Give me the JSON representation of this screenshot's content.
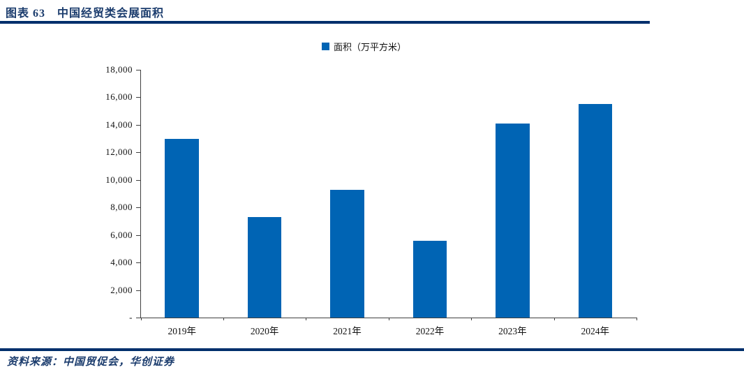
{
  "header": {
    "title": "图表 63　中国经贸类会展面积"
  },
  "legend": {
    "marker": "square-icon",
    "label": "面积（万平方米）"
  },
  "footer": {
    "source": "资料来源：中国贸促会，华创证券"
  },
  "colors": {
    "navy_text": "#1B3C6D",
    "navy_rule": "#002F6C",
    "bar_blue": "#0064B4",
    "axis": "#3F3F3F"
  },
  "chart_data": {
    "type": "bar",
    "title": "中国经贸类会展面积",
    "categories": [
      "2019年",
      "2020年",
      "2021年",
      "2022年",
      "2023年",
      "2024年"
    ],
    "series": [
      {
        "name": "面积（万平方米）",
        "values": [
          13000,
          7300,
          9300,
          5600,
          14100,
          15500
        ]
      }
    ],
    "xlabel": "",
    "ylabel": "",
    "ylim": [
      0,
      18000
    ],
    "ytick_step": 2000,
    "ytick_labels": [
      "-",
      "2,000",
      "4,000",
      "6,000",
      "8,000",
      "10,000",
      "12,000",
      "14,000",
      "16,000",
      "18,000"
    ],
    "grid": false,
    "legend_position": "top-center"
  }
}
